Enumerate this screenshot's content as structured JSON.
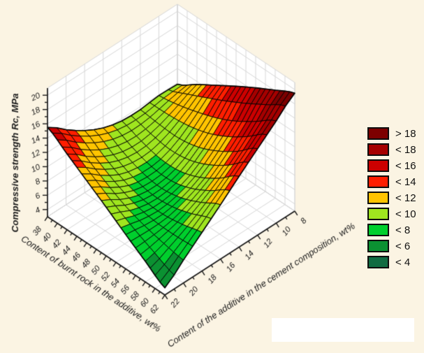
{
  "figure": {
    "background": "#FBF4E3",
    "wall_color": "#FFFFFF",
    "wall_grid_color": "#D7D7D7",
    "mesh_line_color": "#000000",
    "axis_color": "#1A1A1A"
  },
  "chart_data": {
    "type": "surface3d",
    "title": "",
    "x_axis": {
      "title": "Content of burnt rock in the additive, wt%",
      "min": 38,
      "max": 62,
      "tick_step": 2,
      "minor_step": 1,
      "ticks": [
        38,
        40,
        42,
        44,
        46,
        48,
        50,
        52,
        54,
        56,
        58,
        60,
        62
      ]
    },
    "y_axis": {
      "title": "Content of the additive in the cement composition, wt%",
      "front_value": 22,
      "back_value": 8,
      "tick_step": 2,
      "minor_step": 1,
      "ticks": [
        22,
        20,
        18,
        16,
        14,
        12,
        10,
        8
      ]
    },
    "z_axis": {
      "title": "Compressive strength Rc, MPa",
      "min": 4,
      "max": 20,
      "tick_step": 2,
      "minor_step": 1,
      "ticks": [
        4,
        6,
        8,
        10,
        12,
        14,
        16,
        18,
        20
      ]
    },
    "grid": {
      "x_values": [
        38,
        42,
        46,
        50,
        54,
        58,
        62
      ],
      "y_values": [
        8,
        10,
        12,
        14,
        16,
        18,
        20,
        22
      ],
      "z_rows_by_y": [
        [
          9.8,
          11.6,
          13.3,
          15.0,
          16.6,
          18.1,
          19.5
        ],
        [
          9.9,
          10.4,
          11.2,
          12.2,
          13.6,
          15.4,
          17.3
        ],
        [
          9.6,
          9.3,
          9.2,
          9.8,
          11.1,
          12.9,
          15.1
        ],
        [
          9.7,
          8.7,
          8.0,
          8.1,
          9.1,
          10.8,
          12.9
        ],
        [
          10.4,
          8.9,
          7.8,
          7.4,
          7.9,
          9.1,
          10.6
        ],
        [
          11.7,
          9.9,
          8.4,
          7.5,
          7.3,
          7.7,
          8.4
        ],
        [
          13.5,
          11.6,
          9.9,
          8.4,
          7.4,
          6.7,
          6.2
        ],
        [
          15.5,
          13.6,
          11.7,
          9.8,
          7.8,
          5.9,
          4.0
        ]
      ]
    },
    "bands": {
      "thresholds": [
        18,
        16,
        14,
        12,
        10,
        8,
        6,
        4
      ],
      "colors": [
        "#7D0000",
        "#A50000",
        "#CC0000",
        "#FF1E00",
        "#FFC400",
        "#9FE51F",
        "#00CF2D",
        "#0B9132",
        "#106C42"
      ],
      "labels": [
        "> 18",
        "< 18",
        "< 16",
        "< 14",
        "< 12",
        "< 10",
        "< 8",
        "< 6",
        "< 4"
      ]
    }
  },
  "legend": {
    "items": [
      {
        "label": "> 18",
        "color": "#7D0000"
      },
      {
        "label": "< 18",
        "color": "#A50000"
      },
      {
        "label": "< 16",
        "color": "#CC0000"
      },
      {
        "label": "< 14",
        "color": "#FF1E00"
      },
      {
        "label": "< 12",
        "color": "#FFC400"
      },
      {
        "label": "< 10",
        "color": "#9FE51F"
      },
      {
        "label": "< 8",
        "color": "#00CF2D"
      },
      {
        "label": "< 6",
        "color": "#0B9132"
      },
      {
        "label": "< 4",
        "color": "#106C42"
      }
    ]
  }
}
